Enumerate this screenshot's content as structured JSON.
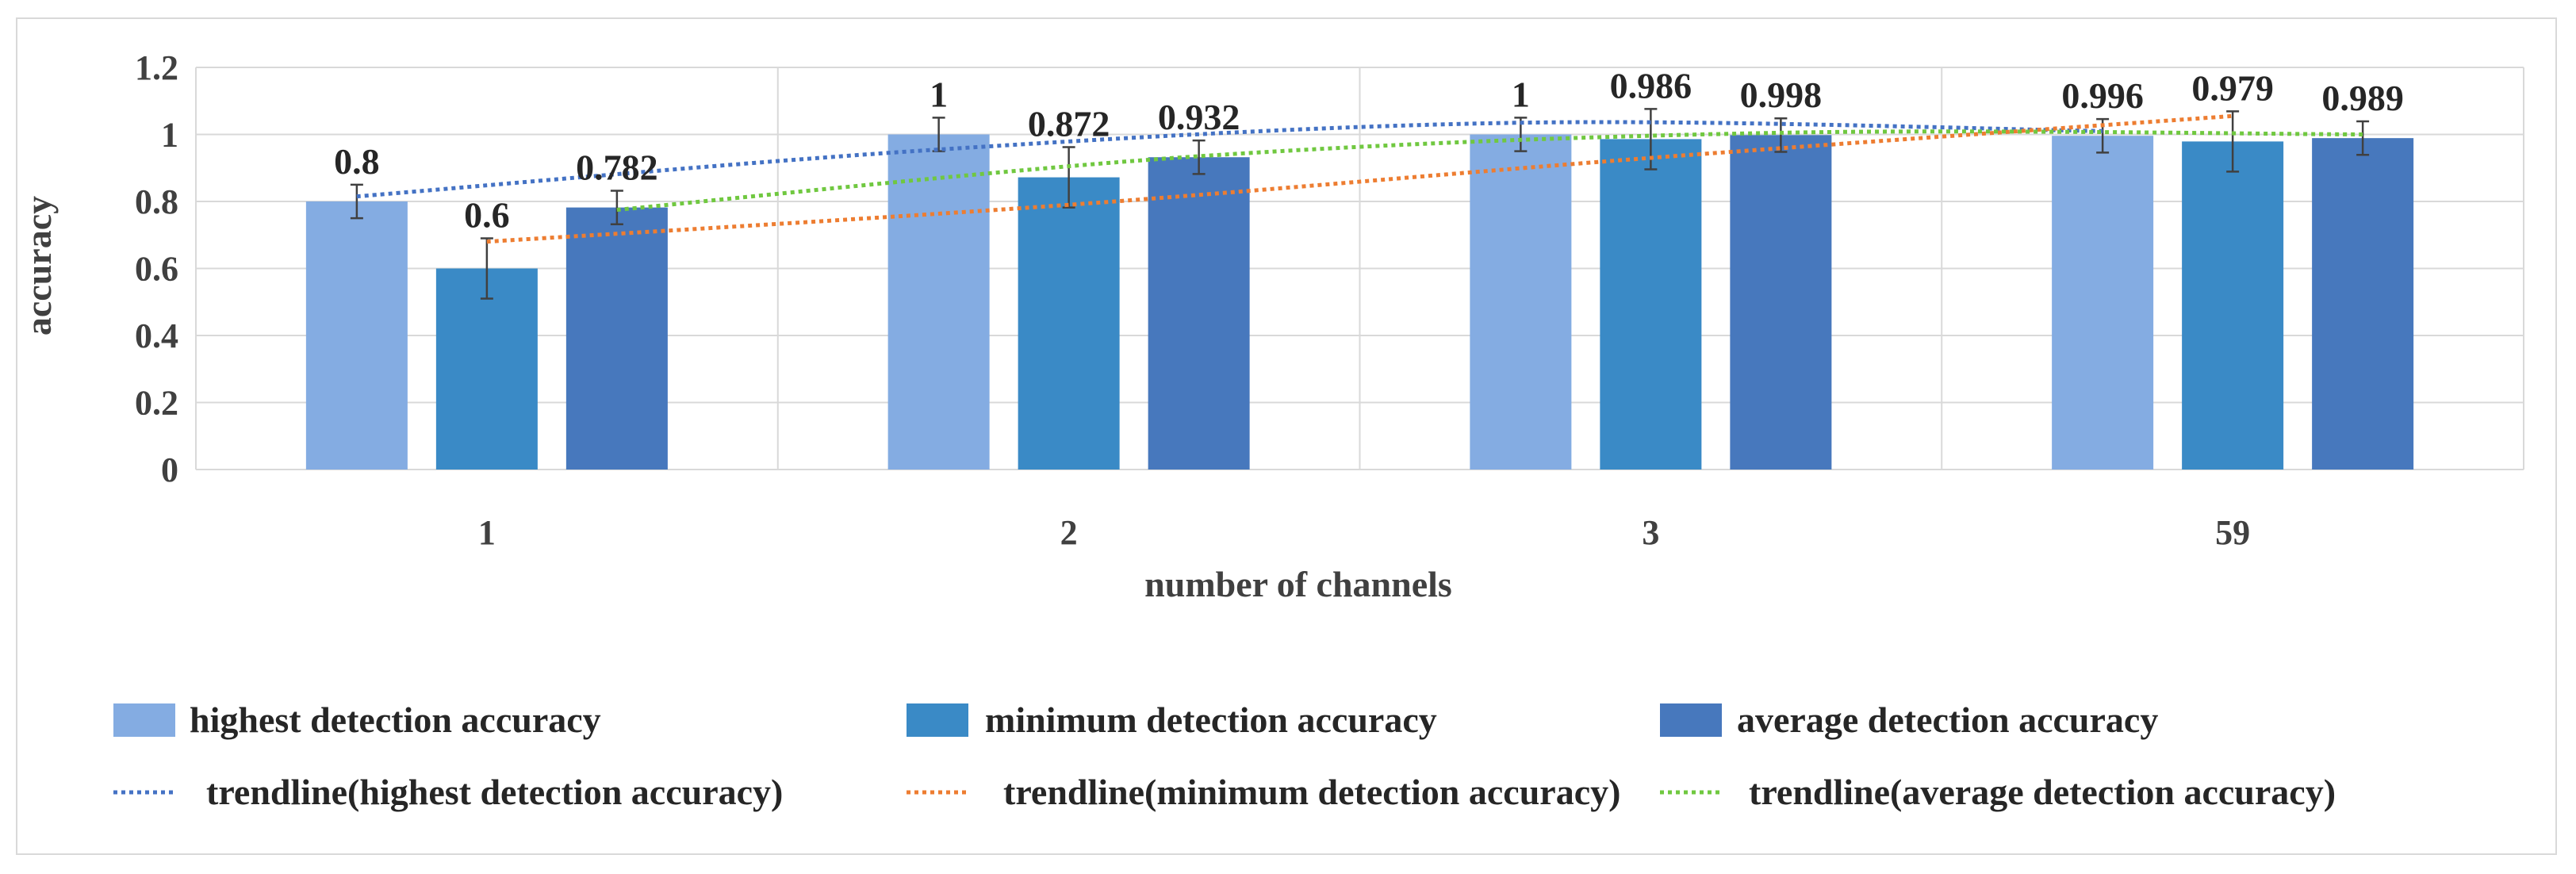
{
  "chart_data": {
    "type": "bar",
    "title": "",
    "xlabel": "number of channels",
    "ylabel": "accuracy",
    "categories": [
      "1",
      "2",
      "3",
      "59"
    ],
    "ylim": [
      0,
      1.2
    ],
    "yticks": [
      "0",
      "0.2",
      "0.4",
      "0.6",
      "0.8",
      "1",
      "1.2"
    ],
    "grid": true,
    "legend_position": "bottom",
    "series": [
      {
        "name": "highest detection accuracy",
        "color": "#84acE2",
        "values": [
          0.8,
          1,
          1,
          0.996
        ],
        "labels": [
          "0.8",
          "1",
          "1",
          "0.996"
        ],
        "error": [
          0.05,
          0.05,
          0.05,
          0.05
        ],
        "trend_color": "#4472c4",
        "trend_name": "trendline(highest detection accuracy)",
        "trend": [
          0.815,
          0.955,
          1.035,
          1.01
        ]
      },
      {
        "name": "minimum detection accuracy",
        "color": "#3a8ac6",
        "values": [
          0.6,
          0.872,
          0.986,
          0.979
        ],
        "labels": [
          "0.6",
          "0.872",
          "0.986",
          "0.979"
        ],
        "error": [
          0.09,
          0.09,
          0.09,
          0.09
        ],
        "trend_color": "#ed7d31",
        "trend_name": "trendline(minimum detection accuracy)",
        "trend": [
          0.68,
          0.79,
          0.93,
          1.055
        ]
      },
      {
        "name": "average detection accuracy",
        "color": "#4778bd",
        "values": [
          0.782,
          0.932,
          0.998,
          0.989
        ],
        "labels": [
          "0.782",
          "0.932",
          "0.998",
          "0.989"
        ],
        "error": [
          0.05,
          0.05,
          0.05,
          0.05
        ],
        "trend_color": "#70c840",
        "trend_name": "trendline(average detection accuracy)",
        "trend": [
          0.775,
          0.935,
          1.005,
          1.0
        ]
      }
    ]
  }
}
